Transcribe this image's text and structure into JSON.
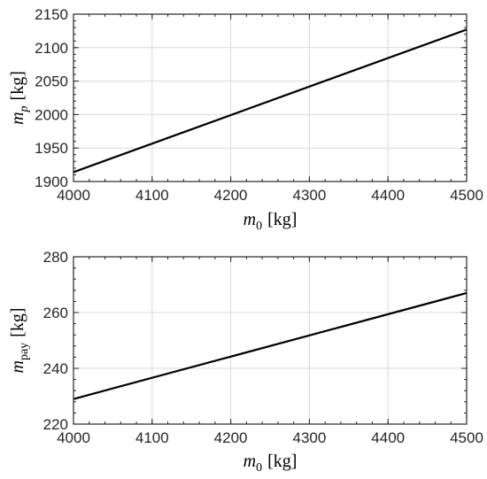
{
  "chart_data": [
    {
      "type": "line",
      "title": "",
      "xlabel": {
        "sym": "m",
        "sub": "0",
        "unit": "[kg]"
      },
      "ylabel": {
        "sym": "m",
        "sub": "p",
        "unit": "[kg]"
      },
      "xlim": [
        4000,
        4500
      ],
      "ylim": [
        1900,
        2150
      ],
      "xticks": [
        4000,
        4100,
        4200,
        4300,
        4400,
        4500
      ],
      "yticks": [
        1900,
        1950,
        2000,
        2050,
        2100,
        2150
      ],
      "grid": true,
      "series": [
        {
          "x": [
            4000,
            4500
          ],
          "y": [
            1914,
            2127
          ],
          "color": "#000000"
        }
      ]
    },
    {
      "type": "line",
      "title": "",
      "xlabel": {
        "sym": "m",
        "sub": "0",
        "unit": "[kg]"
      },
      "ylabel": {
        "sym": "m",
        "sub": "pay",
        "unit": "[kg]"
      },
      "xlim": [
        4000,
        4500
      ],
      "ylim": [
        220,
        280
      ],
      "xticks": [
        4000,
        4100,
        4200,
        4300,
        4400,
        4500
      ],
      "yticks": [
        220,
        240,
        260,
        280
      ],
      "grid": true,
      "series": [
        {
          "x": [
            4000,
            4500
          ],
          "y": [
            229,
            267
          ],
          "color": "#000000"
        }
      ]
    }
  ]
}
